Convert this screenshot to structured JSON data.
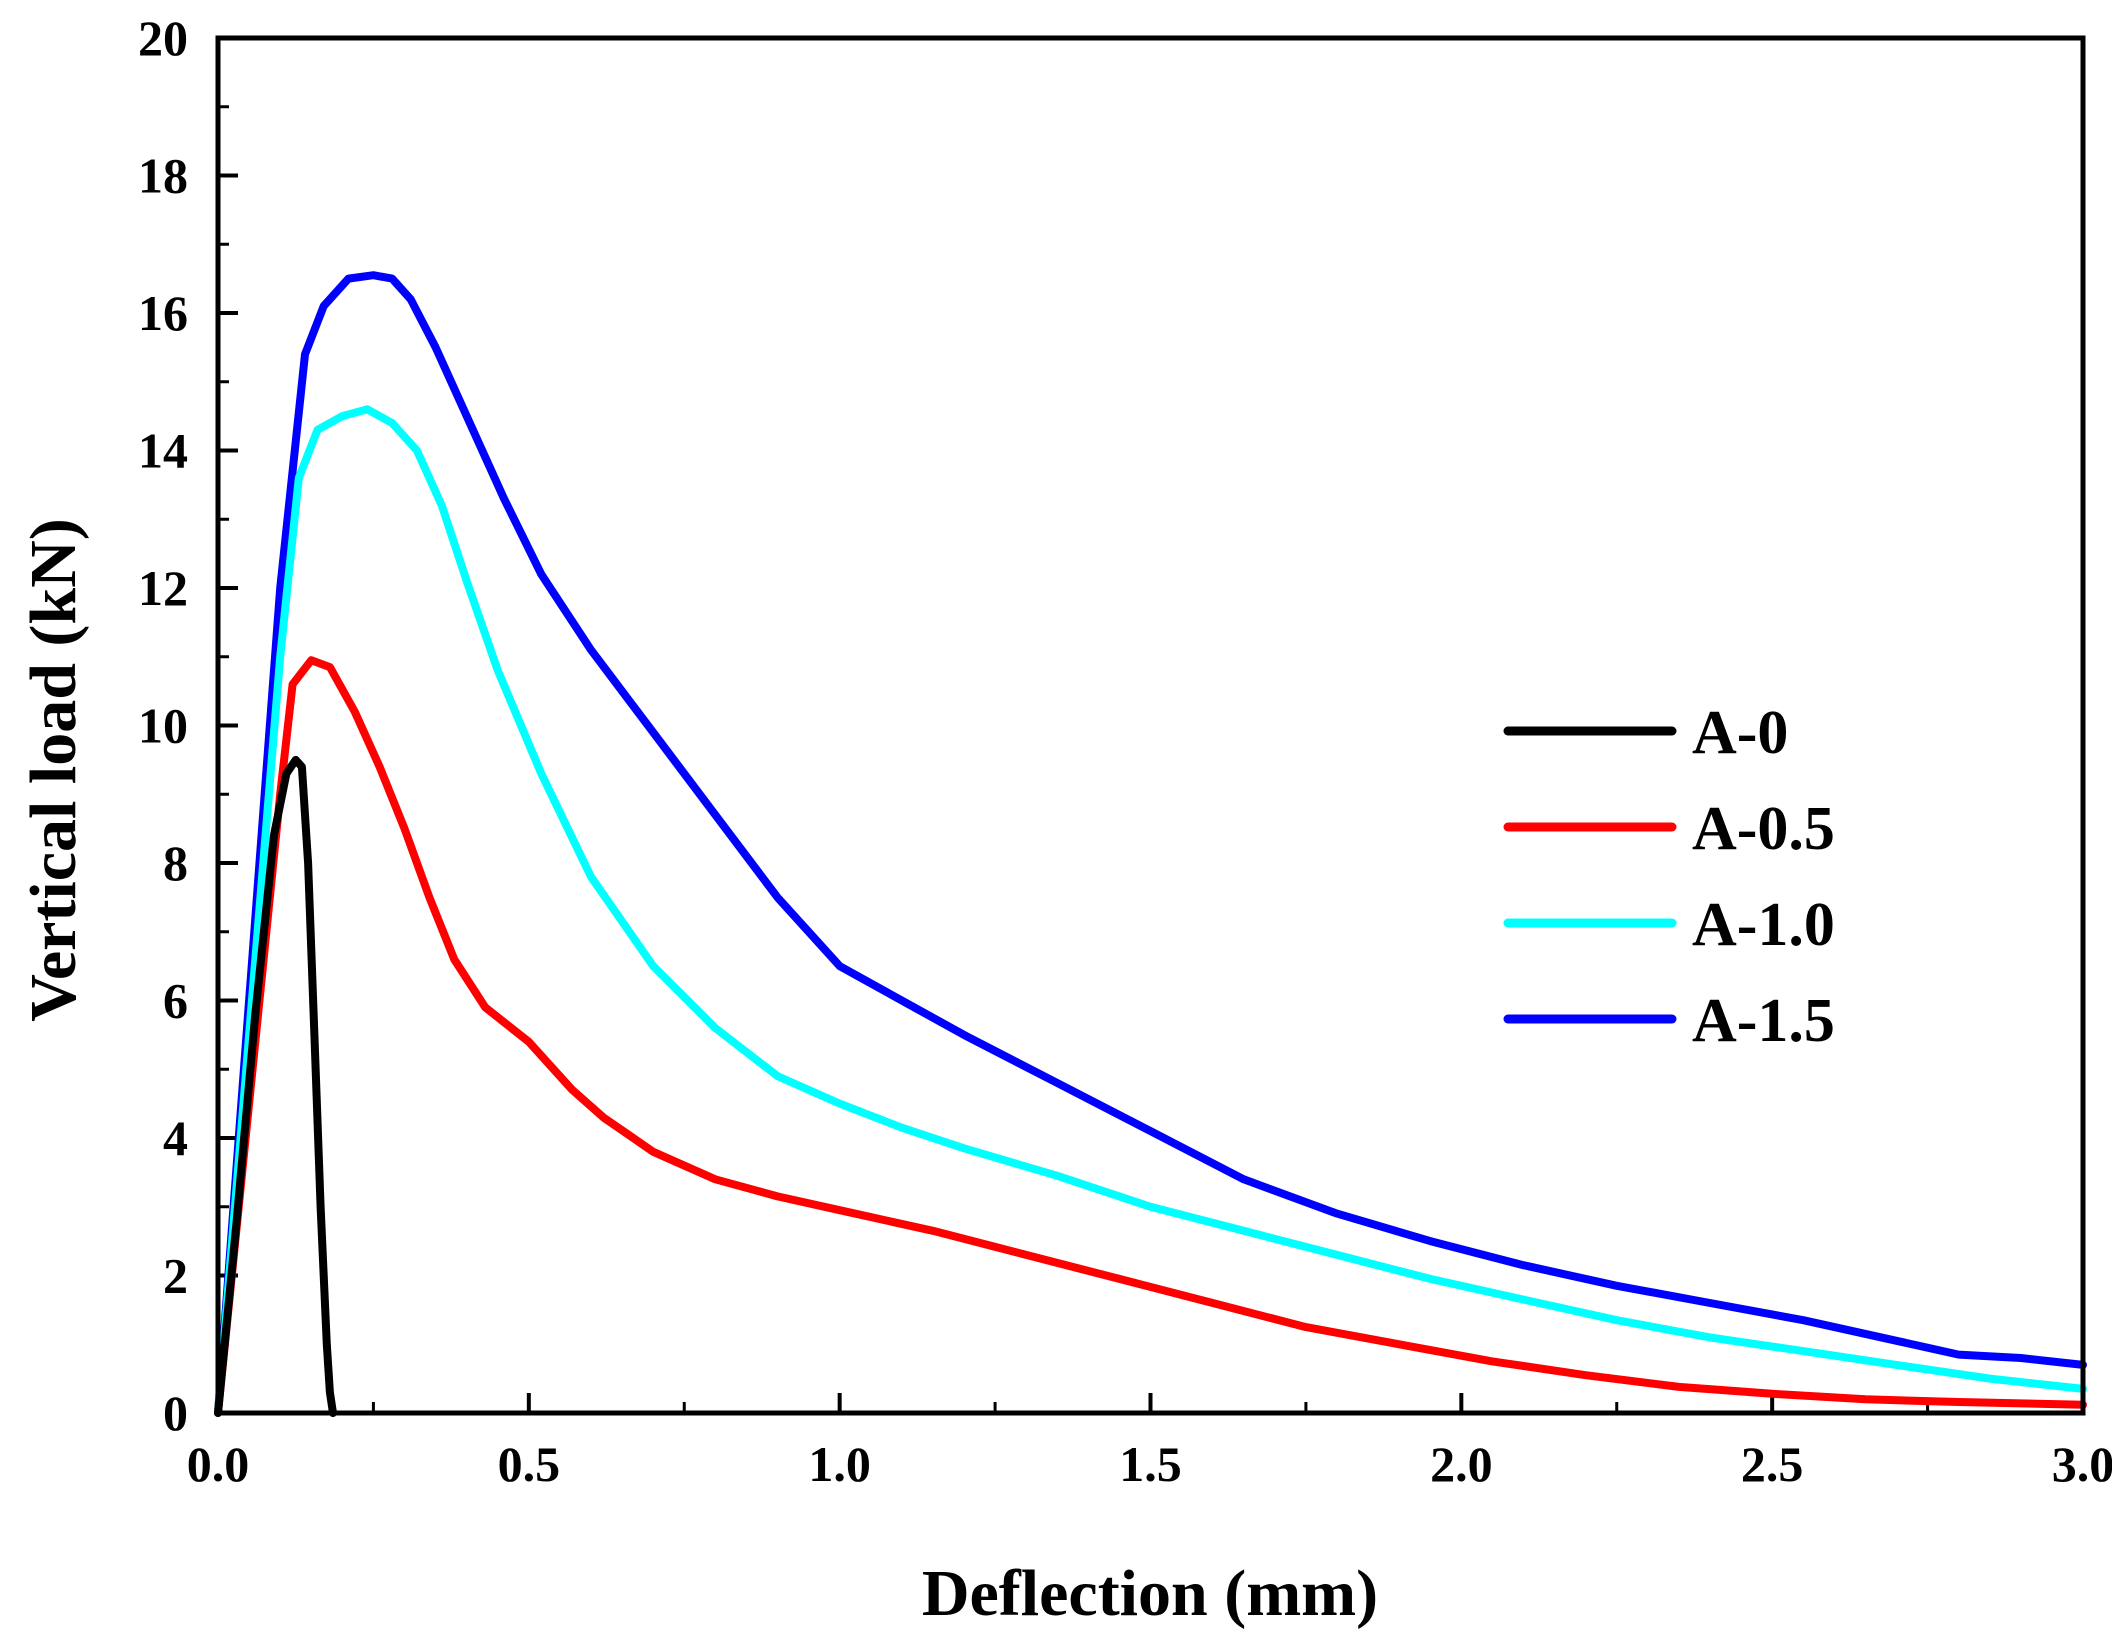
{
  "chart_data": {
    "type": "line",
    "title": "",
    "xlabel": "Deflection (mm)",
    "ylabel": "Vertical load (kN)",
    "xlim": [
      0,
      3.0
    ],
    "ylim": [
      0,
      20
    ],
    "xticks": [
      0.0,
      0.5,
      1.0,
      1.5,
      2.0,
      2.5,
      3.0
    ],
    "xtick_labels": [
      "0.0",
      "0.5",
      "1.0",
      "1.5",
      "2.0",
      "2.5",
      "3.0"
    ],
    "yticks": [
      0,
      2,
      4,
      6,
      8,
      10,
      12,
      14,
      16,
      18,
      20
    ],
    "ytick_labels": [
      "0",
      "2",
      "4",
      "6",
      "8",
      "10",
      "12",
      "14",
      "16",
      "18",
      "20"
    ],
    "grid": false,
    "legend_position": "right",
    "series": [
      {
        "name": "A-0",
        "color": "#000000",
        "x": [
          0,
          0.03,
          0.06,
          0.09,
          0.11,
          0.125,
          0.135,
          0.145,
          0.155,
          0.165,
          0.175,
          0.18,
          0.185
        ],
        "y": [
          0,
          2.8,
          5.8,
          8.4,
          9.3,
          9.5,
          9.4,
          8.0,
          5.5,
          3.0,
          1.0,
          0.3,
          0
        ]
      },
      {
        "name": "A-0.5",
        "color": "#ff0000",
        "x": [
          0,
          0.05,
          0.1,
          0.12,
          0.15,
          0.18,
          0.22,
          0.26,
          0.3,
          0.34,
          0.38,
          0.43,
          0.5,
          0.57,
          0.62,
          0.7,
          0.8,
          0.9,
          1.0,
          1.15,
          1.3,
          1.45,
          1.6,
          1.75,
          1.9,
          2.05,
          2.2,
          2.35,
          2.5,
          2.65,
          2.8,
          3.0
        ],
        "y": [
          0,
          4.5,
          9.0,
          10.6,
          10.95,
          10.85,
          10.2,
          9.4,
          8.5,
          7.5,
          6.6,
          5.9,
          5.4,
          4.7,
          4.3,
          3.8,
          3.4,
          3.15,
          2.95,
          2.65,
          2.3,
          1.95,
          1.6,
          1.25,
          1.0,
          0.75,
          0.55,
          0.38,
          0.28,
          0.2,
          0.16,
          0.12
        ]
      },
      {
        "name": "A-1.0",
        "color": "#00ffff",
        "x": [
          0,
          0.05,
          0.1,
          0.13,
          0.16,
          0.2,
          0.24,
          0.28,
          0.32,
          0.36,
          0.4,
          0.45,
          0.52,
          0.6,
          0.7,
          0.8,
          0.9,
          1.0,
          1.1,
          1.2,
          1.35,
          1.5,
          1.65,
          1.8,
          1.95,
          2.1,
          2.25,
          2.4,
          2.55,
          2.7,
          2.85,
          3.0
        ],
        "y": [
          0,
          5.5,
          11.0,
          13.6,
          14.3,
          14.5,
          14.6,
          14.4,
          14.0,
          13.2,
          12.1,
          10.8,
          9.3,
          7.8,
          6.5,
          5.6,
          4.9,
          4.5,
          4.15,
          3.85,
          3.45,
          3.0,
          2.65,
          2.3,
          1.95,
          1.65,
          1.35,
          1.1,
          0.9,
          0.7,
          0.5,
          0.35
        ]
      },
      {
        "name": "A-1.5",
        "color": "#0000ff",
        "x": [
          0,
          0.05,
          0.1,
          0.14,
          0.17,
          0.21,
          0.25,
          0.28,
          0.31,
          0.35,
          0.4,
          0.46,
          0.52,
          0.6,
          0.7,
          0.8,
          0.9,
          1.0,
          1.1,
          1.2,
          1.35,
          1.5,
          1.65,
          1.8,
          1.95,
          2.1,
          2.25,
          2.4,
          2.55,
          2.7,
          2.8,
          2.9,
          3.0
        ],
        "y": [
          0,
          6.0,
          12.0,
          15.4,
          16.1,
          16.5,
          16.55,
          16.5,
          16.2,
          15.5,
          14.5,
          13.3,
          12.2,
          11.1,
          9.9,
          8.7,
          7.5,
          6.5,
          6.0,
          5.5,
          4.8,
          4.1,
          3.4,
          2.9,
          2.5,
          2.15,
          1.85,
          1.6,
          1.35,
          1.05,
          0.85,
          0.8,
          0.7
        ]
      }
    ]
  }
}
